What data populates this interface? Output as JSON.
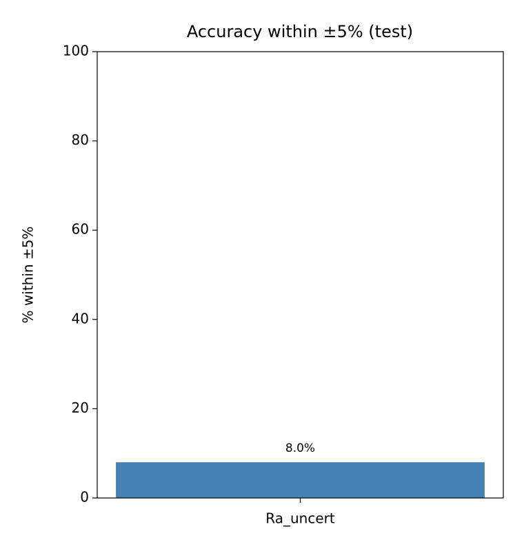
{
  "chart_data": {
    "type": "bar",
    "title": "Accuracy within ±5% (test)",
    "y_label": "% within ±5%",
    "categories": [
      "Ra_uncert"
    ],
    "values": [
      8.0
    ],
    "value_labels": [
      "8.0%"
    ],
    "color": "#4682b4",
    "ylim": [
      0,
      100
    ],
    "yticks": [
      0,
      20,
      40,
      60,
      80,
      100
    ],
    "grid": false
  }
}
